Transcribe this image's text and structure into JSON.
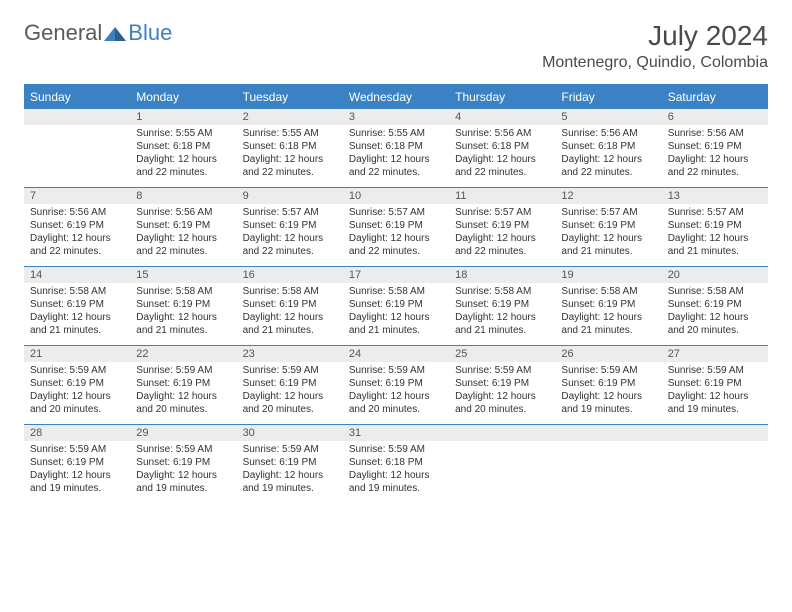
{
  "logo": {
    "text_general": "General",
    "text_blue": "Blue"
  },
  "title": "July 2024",
  "location": "Montenegro, Quindio, Colombia",
  "colors": {
    "accent": "#3b82c4",
    "header_bg": "#3b82c4",
    "header_text": "#ffffff",
    "daynum_bg": "#ececec",
    "text_dark": "#4a4a4a",
    "text_body": "#333333",
    "page_bg": "#ffffff"
  },
  "day_headers": [
    "Sunday",
    "Monday",
    "Tuesday",
    "Wednesday",
    "Thursday",
    "Friday",
    "Saturday"
  ],
  "weeks": [
    [
      null,
      {
        "n": "1",
        "sr": "Sunrise: 5:55 AM",
        "ss": "Sunset: 6:18 PM",
        "d1": "Daylight: 12 hours",
        "d2": "and 22 minutes."
      },
      {
        "n": "2",
        "sr": "Sunrise: 5:55 AM",
        "ss": "Sunset: 6:18 PM",
        "d1": "Daylight: 12 hours",
        "d2": "and 22 minutes."
      },
      {
        "n": "3",
        "sr": "Sunrise: 5:55 AM",
        "ss": "Sunset: 6:18 PM",
        "d1": "Daylight: 12 hours",
        "d2": "and 22 minutes."
      },
      {
        "n": "4",
        "sr": "Sunrise: 5:56 AM",
        "ss": "Sunset: 6:18 PM",
        "d1": "Daylight: 12 hours",
        "d2": "and 22 minutes."
      },
      {
        "n": "5",
        "sr": "Sunrise: 5:56 AM",
        "ss": "Sunset: 6:18 PM",
        "d1": "Daylight: 12 hours",
        "d2": "and 22 minutes."
      },
      {
        "n": "6",
        "sr": "Sunrise: 5:56 AM",
        "ss": "Sunset: 6:19 PM",
        "d1": "Daylight: 12 hours",
        "d2": "and 22 minutes."
      }
    ],
    [
      {
        "n": "7",
        "sr": "Sunrise: 5:56 AM",
        "ss": "Sunset: 6:19 PM",
        "d1": "Daylight: 12 hours",
        "d2": "and 22 minutes."
      },
      {
        "n": "8",
        "sr": "Sunrise: 5:56 AM",
        "ss": "Sunset: 6:19 PM",
        "d1": "Daylight: 12 hours",
        "d2": "and 22 minutes."
      },
      {
        "n": "9",
        "sr": "Sunrise: 5:57 AM",
        "ss": "Sunset: 6:19 PM",
        "d1": "Daylight: 12 hours",
        "d2": "and 22 minutes."
      },
      {
        "n": "10",
        "sr": "Sunrise: 5:57 AM",
        "ss": "Sunset: 6:19 PM",
        "d1": "Daylight: 12 hours",
        "d2": "and 22 minutes."
      },
      {
        "n": "11",
        "sr": "Sunrise: 5:57 AM",
        "ss": "Sunset: 6:19 PM",
        "d1": "Daylight: 12 hours",
        "d2": "and 22 minutes."
      },
      {
        "n": "12",
        "sr": "Sunrise: 5:57 AM",
        "ss": "Sunset: 6:19 PM",
        "d1": "Daylight: 12 hours",
        "d2": "and 21 minutes."
      },
      {
        "n": "13",
        "sr": "Sunrise: 5:57 AM",
        "ss": "Sunset: 6:19 PM",
        "d1": "Daylight: 12 hours",
        "d2": "and 21 minutes."
      }
    ],
    [
      {
        "n": "14",
        "sr": "Sunrise: 5:58 AM",
        "ss": "Sunset: 6:19 PM",
        "d1": "Daylight: 12 hours",
        "d2": "and 21 minutes."
      },
      {
        "n": "15",
        "sr": "Sunrise: 5:58 AM",
        "ss": "Sunset: 6:19 PM",
        "d1": "Daylight: 12 hours",
        "d2": "and 21 minutes."
      },
      {
        "n": "16",
        "sr": "Sunrise: 5:58 AM",
        "ss": "Sunset: 6:19 PM",
        "d1": "Daylight: 12 hours",
        "d2": "and 21 minutes."
      },
      {
        "n": "17",
        "sr": "Sunrise: 5:58 AM",
        "ss": "Sunset: 6:19 PM",
        "d1": "Daylight: 12 hours",
        "d2": "and 21 minutes."
      },
      {
        "n": "18",
        "sr": "Sunrise: 5:58 AM",
        "ss": "Sunset: 6:19 PM",
        "d1": "Daylight: 12 hours",
        "d2": "and 21 minutes."
      },
      {
        "n": "19",
        "sr": "Sunrise: 5:58 AM",
        "ss": "Sunset: 6:19 PM",
        "d1": "Daylight: 12 hours",
        "d2": "and 21 minutes."
      },
      {
        "n": "20",
        "sr": "Sunrise: 5:58 AM",
        "ss": "Sunset: 6:19 PM",
        "d1": "Daylight: 12 hours",
        "d2": "and 20 minutes."
      }
    ],
    [
      {
        "n": "21",
        "sr": "Sunrise: 5:59 AM",
        "ss": "Sunset: 6:19 PM",
        "d1": "Daylight: 12 hours",
        "d2": "and 20 minutes."
      },
      {
        "n": "22",
        "sr": "Sunrise: 5:59 AM",
        "ss": "Sunset: 6:19 PM",
        "d1": "Daylight: 12 hours",
        "d2": "and 20 minutes."
      },
      {
        "n": "23",
        "sr": "Sunrise: 5:59 AM",
        "ss": "Sunset: 6:19 PM",
        "d1": "Daylight: 12 hours",
        "d2": "and 20 minutes."
      },
      {
        "n": "24",
        "sr": "Sunrise: 5:59 AM",
        "ss": "Sunset: 6:19 PM",
        "d1": "Daylight: 12 hours",
        "d2": "and 20 minutes."
      },
      {
        "n": "25",
        "sr": "Sunrise: 5:59 AM",
        "ss": "Sunset: 6:19 PM",
        "d1": "Daylight: 12 hours",
        "d2": "and 20 minutes."
      },
      {
        "n": "26",
        "sr": "Sunrise: 5:59 AM",
        "ss": "Sunset: 6:19 PM",
        "d1": "Daylight: 12 hours",
        "d2": "and 19 minutes."
      },
      {
        "n": "27",
        "sr": "Sunrise: 5:59 AM",
        "ss": "Sunset: 6:19 PM",
        "d1": "Daylight: 12 hours",
        "d2": "and 19 minutes."
      }
    ],
    [
      {
        "n": "28",
        "sr": "Sunrise: 5:59 AM",
        "ss": "Sunset: 6:19 PM",
        "d1": "Daylight: 12 hours",
        "d2": "and 19 minutes."
      },
      {
        "n": "29",
        "sr": "Sunrise: 5:59 AM",
        "ss": "Sunset: 6:19 PM",
        "d1": "Daylight: 12 hours",
        "d2": "and 19 minutes."
      },
      {
        "n": "30",
        "sr": "Sunrise: 5:59 AM",
        "ss": "Sunset: 6:19 PM",
        "d1": "Daylight: 12 hours",
        "d2": "and 19 minutes."
      },
      {
        "n": "31",
        "sr": "Sunrise: 5:59 AM",
        "ss": "Sunset: 6:18 PM",
        "d1": "Daylight: 12 hours",
        "d2": "and 19 minutes."
      },
      null,
      null,
      null
    ]
  ]
}
